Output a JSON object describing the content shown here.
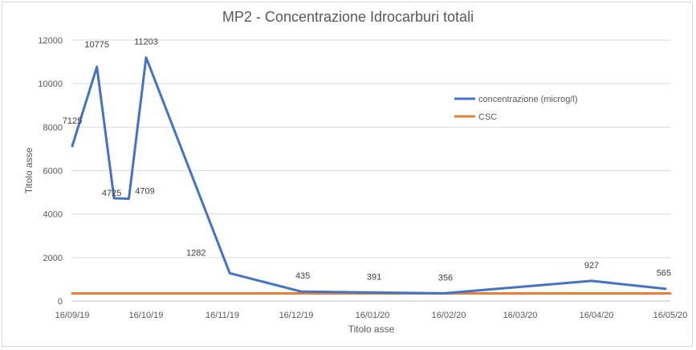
{
  "chart_data": {
    "type": "line",
    "title": "MP2 - Concentrazione Idrocarburi totali",
    "xlabel": "Titolo asse",
    "ylabel": "Titolo asse",
    "ylim": [
      0,
      12000
    ],
    "yticks": [
      0,
      2000,
      4000,
      6000,
      8000,
      10000,
      12000
    ],
    "xlim": [
      "2019-09-16",
      "2020-05-16"
    ],
    "xtick_labels": [
      "16/09/19",
      "16/10/19",
      "16/11/19",
      "16/12/19",
      "16/01/20",
      "16/02/20",
      "16/03/20",
      "16/04/20",
      "16/05/20"
    ],
    "xtick_dates": [
      "2019-09-16",
      "2019-10-16",
      "2019-11-16",
      "2019-12-16",
      "2020-01-16",
      "2020-02-16",
      "2020-03-16",
      "2020-04-16",
      "2020-05-16"
    ],
    "grid": "horizontal",
    "legend_position": "right",
    "series": [
      {
        "name": "concentrazione (microg/l)",
        "color": "#4472c4",
        "points": [
          {
            "x": "2019-09-16",
            "y": 7125,
            "label": "7125"
          },
          {
            "x": "2019-09-26",
            "y": 10775,
            "label": "10775"
          },
          {
            "x": "2019-10-03",
            "y": 4725,
            "label": "4725"
          },
          {
            "x": "2019-10-09",
            "y": 4709,
            "label": "4709"
          },
          {
            "x": "2019-10-16",
            "y": 11203,
            "label": "11203"
          },
          {
            "x": "2019-11-19",
            "y": 1282,
            "label": "1282"
          },
          {
            "x": "2019-12-18",
            "y": 435,
            "label": "435"
          },
          {
            "x": "2020-01-16",
            "y": 391,
            "label": "391"
          },
          {
            "x": "2020-02-14",
            "y": 356,
            "label": "356"
          },
          {
            "x": "2020-04-14",
            "y": 927,
            "label": "927"
          },
          {
            "x": "2020-05-14",
            "y": 565,
            "label": "565"
          }
        ]
      },
      {
        "name": "CSC",
        "color": "#ed7d31",
        "points": [
          {
            "x": "2019-09-16",
            "y": 350
          },
          {
            "x": "2020-05-16",
            "y": 350
          }
        ]
      }
    ]
  }
}
